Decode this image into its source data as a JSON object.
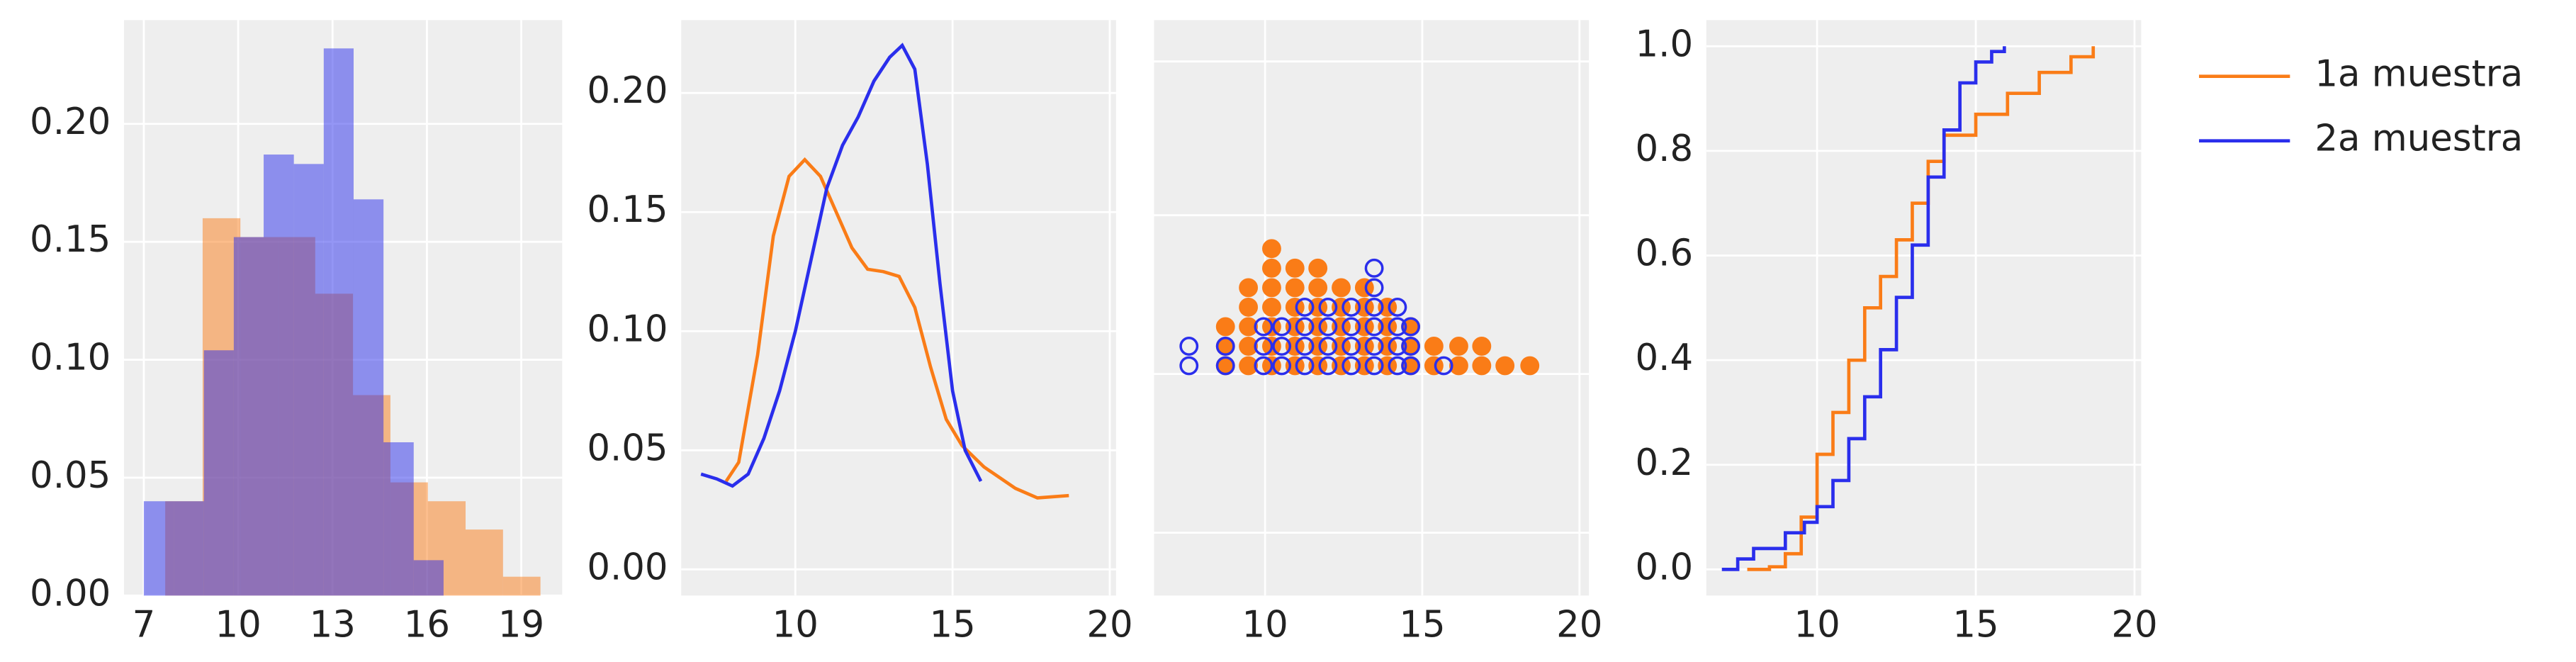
{
  "chart_data": [
    {
      "type": "histogram",
      "series": [
        {
          "name": "1a muestra",
          "color": "#fa7c17",
          "opacity": 0.5,
          "bins": [
            7.68,
            8.87,
            10.07,
            11.26,
            12.45,
            13.65,
            14.84,
            16.03,
            17.23,
            18.42,
            19.61
          ],
          "values": [
            0.04,
            0.16,
            0.152,
            0.152,
            0.128,
            0.085,
            0.048,
            0.04,
            0.028,
            0.008
          ]
        },
        {
          "name": "2a muestra",
          "color": "#2a2eec",
          "opacity": 0.5,
          "bins": [
            7.0,
            7.95,
            8.91,
            9.86,
            10.81,
            11.77,
            12.72,
            13.67,
            14.62,
            15.58,
            16.53
          ],
          "values": [
            0.04,
            0.04,
            0.104,
            0.152,
            0.187,
            0.183,
            0.232,
            0.168,
            0.065,
            0.015
          ]
        }
      ],
      "xlim": [
        6.37,
        20.3
      ],
      "xticks": [
        7,
        10,
        13,
        16,
        19
      ],
      "ylim": [
        0,
        0.244
      ],
      "yticks": [
        {
          "value": 0,
          "label": "0.00"
        },
        {
          "value": 0.05,
          "label": "0.05"
        },
        {
          "value": 0.1,
          "label": "0.10"
        },
        {
          "value": 0.15,
          "label": "0.15"
        },
        {
          "value": 0.2,
          "label": "0.20"
        }
      ],
      "grid": true
    },
    {
      "type": "line",
      "series": [
        {
          "name": "1a muestra",
          "color": "#fa7c17",
          "x": [
            7.8,
            8.2,
            8.8,
            9.3,
            9.8,
            10.3,
            10.8,
            11.3,
            11.8,
            12.3,
            12.8,
            13.3,
            13.8,
            14.3,
            14.8,
            15.3,
            16.0,
            17.0,
            17.7,
            18.7
          ],
          "values": [
            0.037,
            0.045,
            0.09,
            0.14,
            0.165,
            0.172,
            0.165,
            0.15,
            0.135,
            0.126,
            0.125,
            0.123,
            0.11,
            0.085,
            0.063,
            0.052,
            0.043,
            0.034,
            0.03,
            0.031
          ]
        },
        {
          "name": "2a muestra",
          "color": "#2a2eec",
          "x": [
            7.0,
            7.5,
            8.0,
            8.5,
            9.0,
            9.5,
            10.0,
            10.5,
            11.0,
            11.5,
            12.0,
            12.5,
            13.0,
            13.4,
            13.8,
            14.2,
            14.6,
            15.0,
            15.4,
            15.9
          ],
          "values": [
            0.04,
            0.038,
            0.035,
            0.04,
            0.055,
            0.075,
            0.1,
            0.13,
            0.16,
            0.178,
            0.19,
            0.205,
            0.215,
            0.22,
            0.21,
            0.17,
            0.12,
            0.075,
            0.05,
            0.037
          ]
        }
      ],
      "xlim": [
        6.37,
        20.2
      ],
      "xticks": [
        10,
        15,
        20
      ],
      "ylim": [
        -0.011,
        0.2306
      ],
      "yticks": [
        {
          "value": 0,
          "label": "0.00"
        },
        {
          "value": 0.05,
          "label": "0.05"
        },
        {
          "value": 0.1,
          "label": "0.10"
        },
        {
          "value": 0.15,
          "label": "0.15"
        },
        {
          "value": 0.2,
          "label": "0.20"
        }
      ],
      "grid": true
    },
    {
      "type": "dotplot",
      "series": [
        {
          "name": "1a muestra",
          "color": "#fa7c17",
          "filled": true,
          "x": [
            8.74,
            9.47,
            10.21,
            10.95,
            11.68,
            12.42,
            13.16,
            13.89,
            14.63,
            15.37,
            16.16,
            16.89,
            17.63,
            18.42
          ],
          "values": [
            3,
            5,
            7,
            6,
            6,
            5,
            5,
            4,
            3,
            2,
            2,
            2,
            1,
            1
          ]
        },
        {
          "name": "2a muestra",
          "color": "#2a2eec",
          "filled": false,
          "x": [
            7.58,
            8.74,
            9.95,
            10.53,
            11.26,
            12.0,
            12.74,
            13.47,
            14.21,
            14.63,
            15.68
          ],
          "values": [
            2,
            2,
            3,
            3,
            4,
            4,
            4,
            6,
            4,
            3,
            1
          ]
        }
      ],
      "xlim": [
        6.47,
        20.3
      ],
      "xticks": [
        10,
        15,
        20
      ],
      "grid": true
    },
    {
      "type": "ecdf",
      "series": [
        {
          "name": "1a muestra",
          "color": "#fa7c17",
          "x": [
            7.8,
            8.5,
            9.0,
            9.5,
            10.0,
            10.5,
            11.0,
            11.5,
            12.0,
            12.5,
            13.0,
            13.5,
            14.0,
            15.0,
            16.0,
            17.0,
            18.0,
            18.7
          ],
          "values": [
            0,
            0.005,
            0.03,
            0.1,
            0.22,
            0.3,
            0.4,
            0.5,
            0.56,
            0.63,
            0.7,
            0.78,
            0.83,
            0.87,
            0.91,
            0.95,
            0.98,
            1.0
          ]
        },
        {
          "name": "2a muestra",
          "color": "#2a2eec",
          "x": [
            7.0,
            7.5,
            8.0,
            9.0,
            9.6,
            10.0,
            10.5,
            11.0,
            11.5,
            12.0,
            12.5,
            13.0,
            13.5,
            14.0,
            14.5,
            15.0,
            15.5,
            15.9
          ],
          "values": [
            0,
            0.02,
            0.04,
            0.07,
            0.09,
            0.12,
            0.17,
            0.25,
            0.33,
            0.42,
            0.52,
            0.62,
            0.75,
            0.84,
            0.93,
            0.97,
            0.99,
            1.0
          ]
        }
      ],
      "xlim": [
        6.51,
        20.21
      ],
      "xticks": [
        10,
        15,
        20
      ],
      "ylim": [
        -0.05,
        1.05
      ],
      "yticks": [
        {
          "value": 0,
          "label": "0.0"
        },
        {
          "value": 0.2,
          "label": "0.2"
        },
        {
          "value": 0.4,
          "label": "0.4"
        },
        {
          "value": 0.6,
          "label": "0.6"
        },
        {
          "value": 0.8,
          "label": "0.8"
        },
        {
          "value": 1.0,
          "label": "1.0"
        }
      ],
      "grid": true,
      "legend": "right"
    }
  ]
}
